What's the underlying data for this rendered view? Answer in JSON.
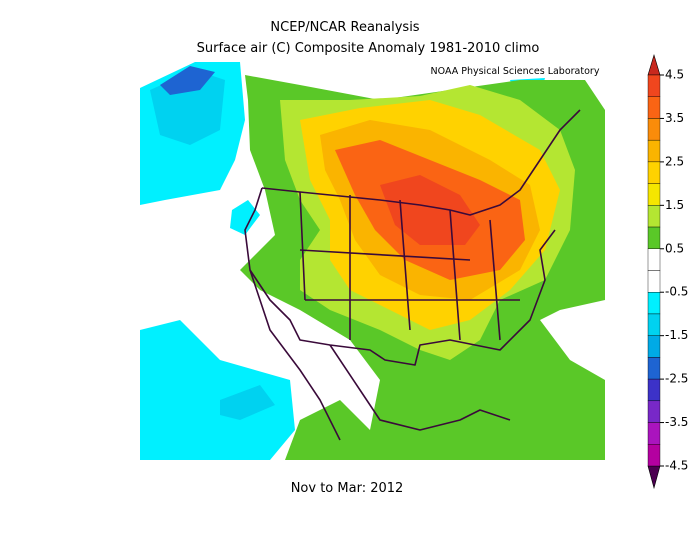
{
  "header": {
    "title": "NCEP/NCAR Reanalysis",
    "subtitle": "Surface air (C) Composite Anomaly 1981-2010 climo",
    "attribution": "NOAA Physical Sciences Laboratory"
  },
  "footer": "Nov to Mar: 2012",
  "colorbar": {
    "ticks": [
      4.5,
      3.5,
      2.5,
      1.5,
      0.5,
      -0.5,
      -1.5,
      -2.5,
      -3.5,
      -4.5
    ],
    "colors": [
      "#f0461e",
      "#fa6414",
      "#fa8c0a",
      "#fab400",
      "#ffd200",
      "#f5e600",
      "#b4e632",
      "#5ac828",
      "#ffffff",
      "#ffffff",
      "#00f0ff",
      "#00d2f0",
      "#00aae6",
      "#1e64d2",
      "#3c32c8",
      "#7828c8",
      "#aa14be",
      "#b400a0",
      "#8c008c",
      "#6e006e"
    ],
    "over_color": "#c8281e",
    "under_color": "#4b0050"
  }
}
